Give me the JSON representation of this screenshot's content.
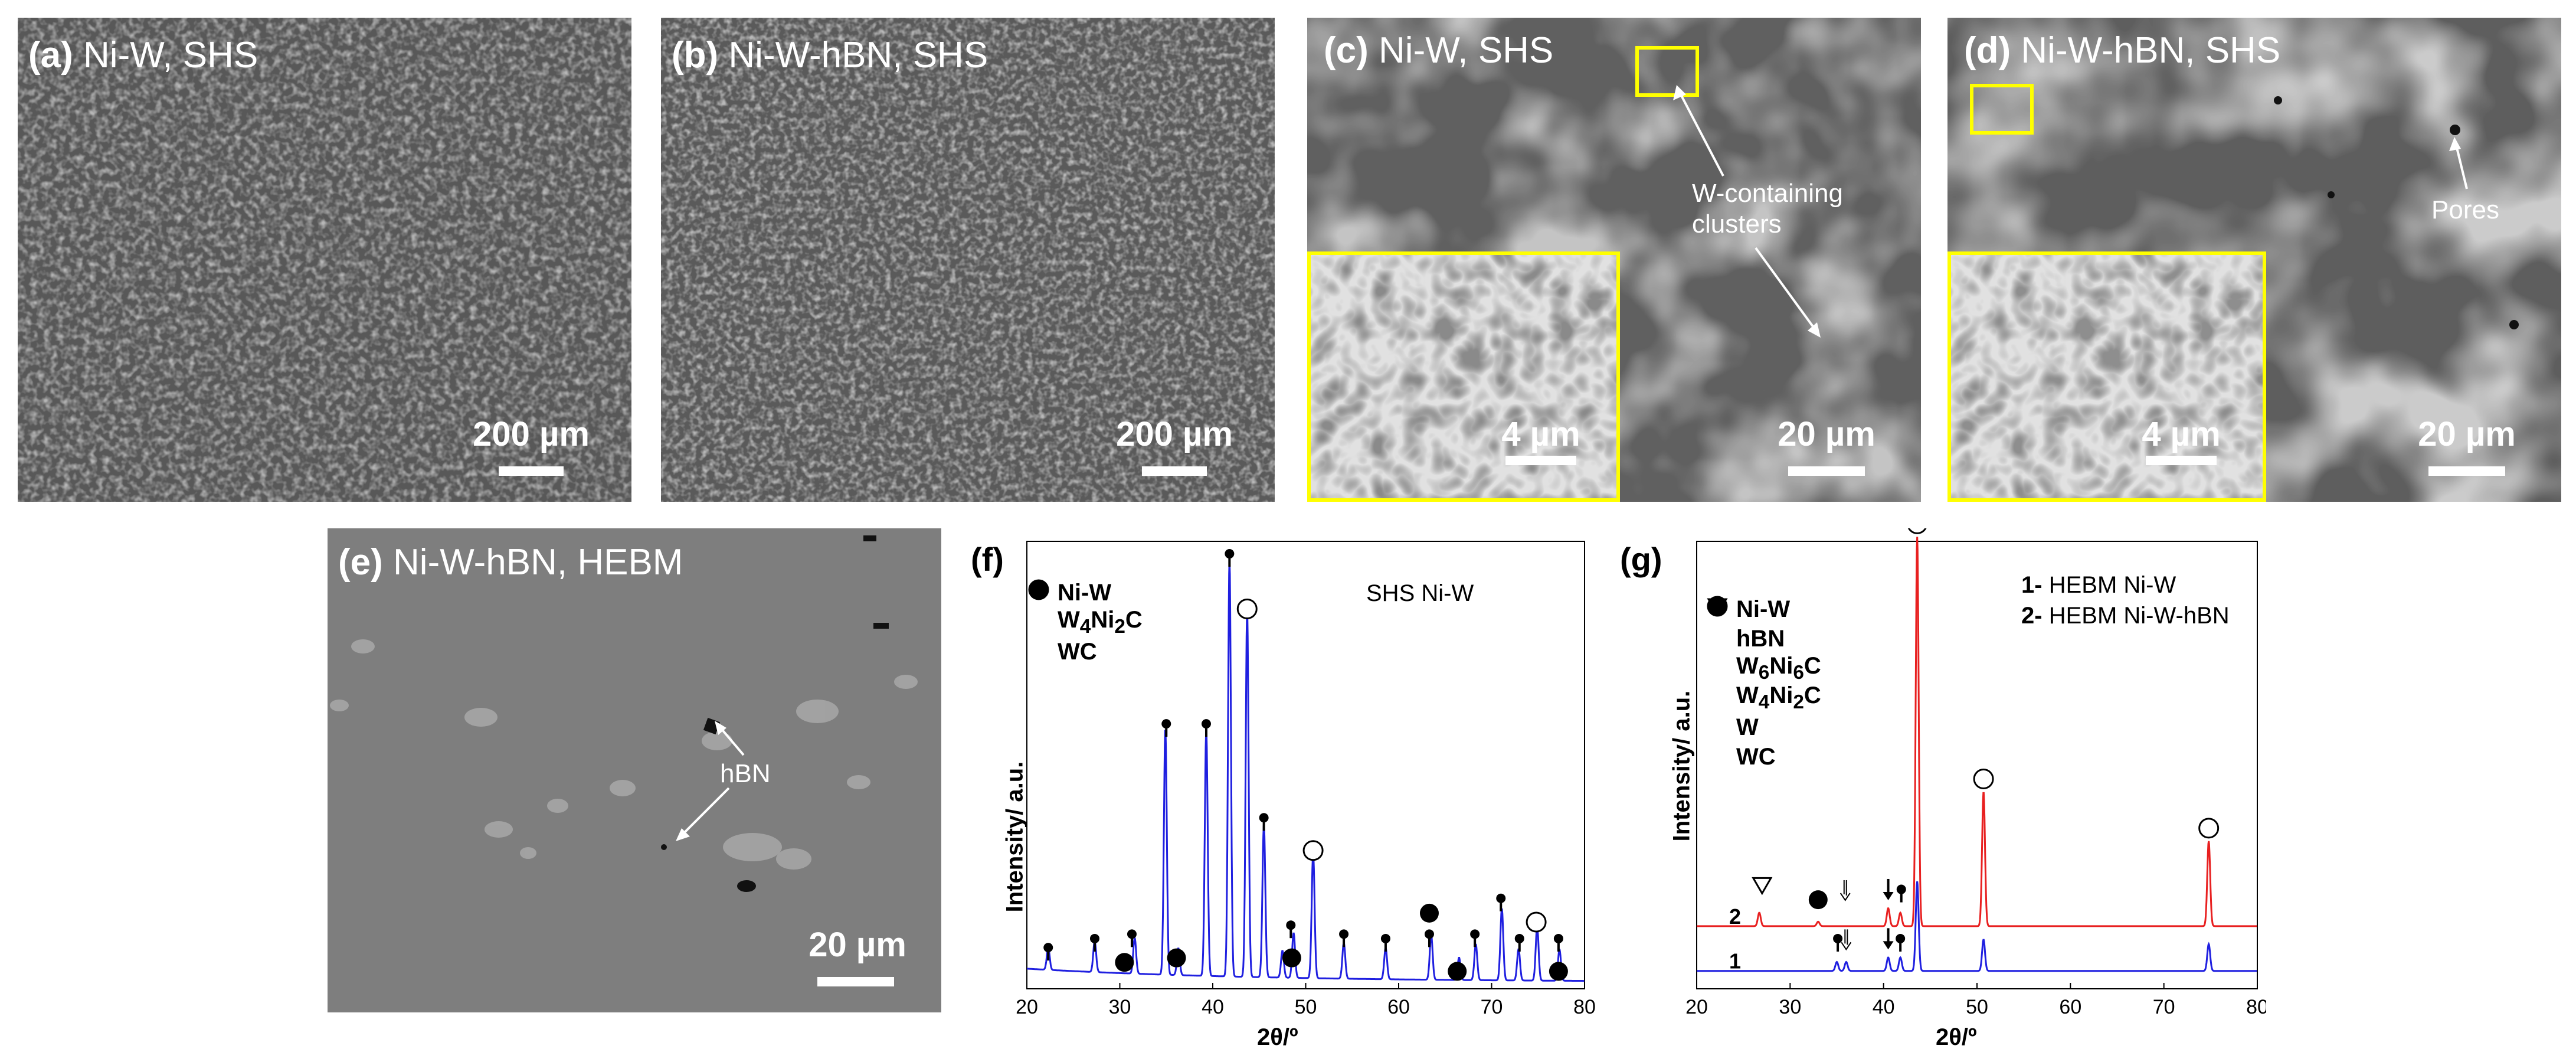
{
  "panels": {
    "a": {
      "letter": "(a)",
      "title": "Ni-W, SHS",
      "scale": "200 µm"
    },
    "b": {
      "letter": "(b)",
      "title": "Ni-W-hBN, SHS",
      "scale": "200 µm"
    },
    "c": {
      "letter": "(c)",
      "title": "Ni-W, SHS",
      "scale": "20 µm",
      "inset_scale": "4 µm",
      "annotation": [
        "W-containing",
        "clusters"
      ]
    },
    "d": {
      "letter": "(d)",
      "title": "Ni-W-hBN, SHS",
      "scale": "20 µm",
      "inset_scale": "4 µm",
      "annotation": "Pores"
    },
    "e": {
      "letter": "(e)",
      "title": "Ni-W-hBN, HEBM",
      "scale": "20 µm",
      "annotation": "hBN"
    }
  },
  "colors": {
    "highlight": "#ffff00",
    "sem_gray": "#5a5a5a",
    "series_blue": "#1f1fe0",
    "series_red": "#e82020"
  },
  "chart_data": [
    {
      "panel": "(f)",
      "type": "line",
      "title": "SHS Ni-W",
      "xlabel": "2θ/º",
      "ylabel": "Intensity/ a.u.",
      "xlim": [
        20,
        80
      ],
      "xticks": [
        20,
        30,
        40,
        50,
        60,
        70,
        80
      ],
      "legend": [
        {
          "symbol": "open-circle",
          "label": "Ni-W"
        },
        {
          "symbol": "pin",
          "label": "W",
          "sub1": "4",
          "mid": "Ni",
          "sub2": "2",
          "tail": "C"
        },
        {
          "symbol": "filled-circle",
          "label": "WC"
        }
      ],
      "series": [
        {
          "color": "#1f1fe0",
          "peaks": [
            [
              22.3,
              0.05
            ],
            [
              27.3,
              0.07
            ],
            [
              31.6,
              0.08
            ],
            [
              34.9,
              0.55
            ],
            [
              36.3,
              0.06
            ],
            [
              39.3,
              0.55
            ],
            [
              41.8,
              0.93
            ],
            [
              43.7,
              0.82
            ],
            [
              45.5,
              0.34
            ],
            [
              47.5,
              0.06
            ],
            [
              48.7,
              0.1
            ],
            [
              50.8,
              0.28
            ],
            [
              54.1,
              0.08
            ],
            [
              58.6,
              0.07
            ],
            [
              63.5,
              0.1
            ],
            [
              66.5,
              0.05
            ],
            [
              68.3,
              0.08
            ],
            [
              71.1,
              0.16
            ],
            [
              72.9,
              0.07
            ],
            [
              74.9,
              0.12
            ],
            [
              77.3,
              0.07
            ]
          ]
        }
      ],
      "markers": [
        {
          "x": 22.3,
          "level": 0.05,
          "symbol": "pin"
        },
        {
          "x": 27.3,
          "level": 0.07,
          "symbol": "pin"
        },
        {
          "x": 31.3,
          "level": 0.08,
          "symbol": "pin"
        },
        {
          "x": 30.5,
          "level": 0.03,
          "symbol": "filled-circle"
        },
        {
          "x": 35.0,
          "level": 0.55,
          "symbol": "pin"
        },
        {
          "x": 36.1,
          "level": 0.04,
          "symbol": "filled-circle"
        },
        {
          "x": 39.3,
          "level": 0.55,
          "symbol": "pin"
        },
        {
          "x": 41.8,
          "level": 0.93,
          "symbol": "pin"
        },
        {
          "x": 43.7,
          "level": 0.82,
          "symbol": "open-circle"
        },
        {
          "x": 45.5,
          "level": 0.34,
          "symbol": "pin"
        },
        {
          "x": 48.4,
          "level": 0.1,
          "symbol": "pin"
        },
        {
          "x": 48.5,
          "level": 0.04,
          "symbol": "filled-circle"
        },
        {
          "x": 50.8,
          "level": 0.28,
          "symbol": "open-circle"
        },
        {
          "x": 54.1,
          "level": 0.08,
          "symbol": "pin"
        },
        {
          "x": 58.6,
          "level": 0.07,
          "symbol": "pin"
        },
        {
          "x": 63.3,
          "level": 0.08,
          "symbol": "pin"
        },
        {
          "x": 63.3,
          "level": 0.14,
          "symbol": "filled-circle"
        },
        {
          "x": 66.3,
          "level": 0.01,
          "symbol": "filled-circle"
        },
        {
          "x": 68.2,
          "level": 0.08,
          "symbol": "pin"
        },
        {
          "x": 71.0,
          "level": 0.16,
          "symbol": "pin"
        },
        {
          "x": 73.0,
          "level": 0.07,
          "symbol": "pin"
        },
        {
          "x": 74.8,
          "level": 0.12,
          "symbol": "open-circle"
        },
        {
          "x": 77.2,
          "level": 0.07,
          "symbol": "pin"
        },
        {
          "x": 77.2,
          "level": 0.01,
          "symbol": "filled-circle"
        }
      ]
    },
    {
      "panel": "(g)",
      "type": "line",
      "title_lines": [
        {
          "num": "1-",
          "text": "HEBM Ni-W"
        },
        {
          "num": "2-",
          "text": "HEBM Ni-W-hBN"
        }
      ],
      "xlabel": "2θ/º",
      "ylabel": "Intensity/ a.u.",
      "xlim": [
        20,
        80
      ],
      "xticks": [
        20,
        30,
        40,
        50,
        60,
        70,
        80
      ],
      "legend": [
        {
          "symbol": "open-circle",
          "label": "Ni-W"
        },
        {
          "symbol": "open-triangle",
          "label": "hBN"
        },
        {
          "symbol": "open-arrow",
          "label": "W",
          "sub1": "6",
          "mid": "Ni",
          "sub2": "6",
          "tail": "C"
        },
        {
          "symbol": "pin",
          "label": "W",
          "sub1": "4",
          "mid": "Ni",
          "sub2": "2",
          "tail": "C"
        },
        {
          "symbol": "filled-arrow",
          "label": "W"
        },
        {
          "symbol": "filled-circle",
          "label": "WC"
        }
      ],
      "series": [
        {
          "name": "1",
          "color": "#1f1fe0",
          "baseline": 0.04,
          "peaks": [
            [
              35.0,
              0.02
            ],
            [
              36.0,
              0.02
            ],
            [
              40.5,
              0.03
            ],
            [
              41.8,
              0.03
            ],
            [
              43.6,
              0.2
            ],
            [
              50.7,
              0.07
            ],
            [
              74.8,
              0.06
            ]
          ]
        },
        {
          "name": "2",
          "color": "#e82020",
          "baseline": 0.14,
          "peaks": [
            [
              26.7,
              0.03
            ],
            [
              33.0,
              0.01
            ],
            [
              40.5,
              0.04
            ],
            [
              41.8,
              0.03
            ],
            [
              43.6,
              0.87
            ],
            [
              50.7,
              0.3
            ],
            [
              74.8,
              0.19
            ]
          ]
        }
      ],
      "markers": [
        {
          "x": 43.6,
          "level": 1.01,
          "symbol": "open-circle"
        },
        {
          "x": 50.7,
          "level": 0.44,
          "symbol": "open-circle"
        },
        {
          "x": 74.8,
          "level": 0.33,
          "symbol": "open-circle"
        },
        {
          "x": 27.0,
          "level": 0.2,
          "symbol": "open-triangle"
        },
        {
          "x": 33.0,
          "level": 0.17,
          "symbol": "filled-circle"
        },
        {
          "x": 35.9,
          "level": 0.19,
          "symbol": "open-arrow"
        },
        {
          "x": 40.5,
          "level": 0.19,
          "symbol": "filled-arrow"
        },
        {
          "x": 41.9,
          "level": 0.18,
          "symbol": "pin"
        },
        {
          "x": 35.1,
          "level": 0.07,
          "symbol": "pin"
        },
        {
          "x": 36.0,
          "level": 0.08,
          "symbol": "open-arrow"
        },
        {
          "x": 40.5,
          "level": 0.08,
          "symbol": "filled-arrow"
        },
        {
          "x": 41.8,
          "level": 0.07,
          "symbol": "pin"
        }
      ]
    }
  ]
}
